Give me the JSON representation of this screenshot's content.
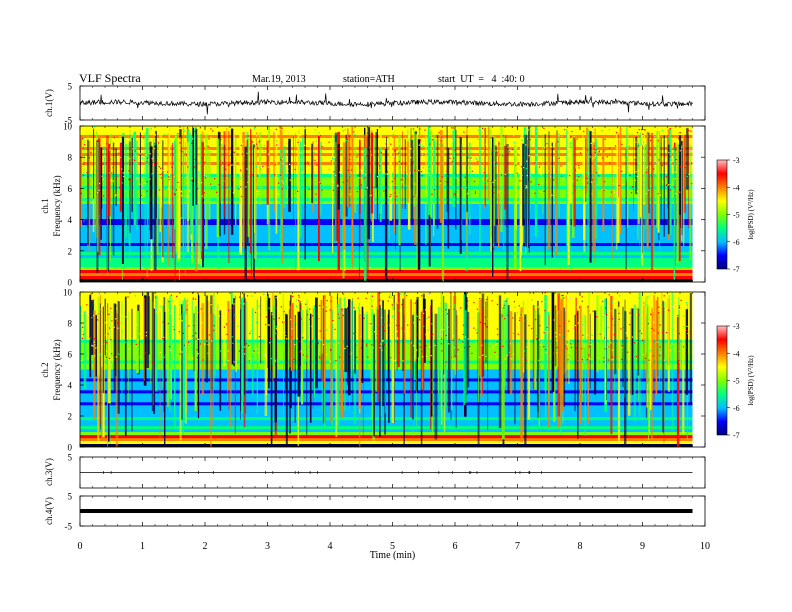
{
  "header": {
    "title": "VLF Spectra",
    "date": "Mar.19, 2013",
    "station": "station=ATH",
    "start": "start  UT  =   4  :40: 0"
  },
  "chart_data": [
    {
      "type": "line",
      "panel": "ch1-waveform",
      "ylabel": "ch.1(V)",
      "ylim": [
        -5,
        5
      ],
      "yticks": [
        "5",
        "-5"
      ],
      "x_range_min": [
        0,
        9.8
      ],
      "baseline": 0.0
    },
    {
      "type": "heatmap",
      "panel": "ch1-spectrogram",
      "ylabel": [
        "ch.1",
        "Frequency  (kHz)"
      ],
      "ylim": [
        0,
        10
      ],
      "yticks": [
        "0",
        "2",
        "4",
        "6",
        "8",
        "10"
      ],
      "colorbar": {
        "label": "log(PSD) (V²/Hz)",
        "range": [
          -7,
          -3
        ],
        "ticks": [
          "-3",
          "-4",
          "-5",
          "-6",
          "-7"
        ]
      }
    },
    {
      "type": "heatmap",
      "panel": "ch2-spectrogram",
      "ylabel": [
        "ch.2",
        "Frequency  (kHz)"
      ],
      "ylim": [
        0,
        10
      ],
      "yticks": [
        "0",
        "2",
        "4",
        "6",
        "8",
        "10"
      ],
      "colorbar": {
        "label": "log(PSD) (V²/Hz)",
        "range": [
          -7,
          -3
        ],
        "ticks": [
          "-3",
          "-4",
          "-5",
          "-6",
          "-7"
        ]
      }
    },
    {
      "type": "line",
      "panel": "ch3-waveform",
      "ylabel": "ch.3(V)",
      "ylim": [
        -5,
        5
      ],
      "yticks": [
        "5"
      ],
      "baseline": 0.0
    },
    {
      "type": "line",
      "panel": "ch4-waveform",
      "ylabel": "ch.4(V)",
      "ylim": [
        -5,
        5
      ],
      "yticks": [
        "5",
        "-5"
      ],
      "baseline": 0.0
    }
  ],
  "xaxis": {
    "label": "Time  (min)",
    "ticks": [
      "0",
      "1",
      "2",
      "3",
      "4",
      "5",
      "6",
      "7",
      "8",
      "9",
      "10"
    ],
    "xlim": [
      0,
      10
    ]
  },
  "colors": {
    "colormap": [
      "#000080",
      "#0000ff",
      "#00c0ff",
      "#00ff80",
      "#80ff00",
      "#ffff00",
      "#ff8000",
      "#ff0000",
      "#ffc0c0"
    ]
  }
}
